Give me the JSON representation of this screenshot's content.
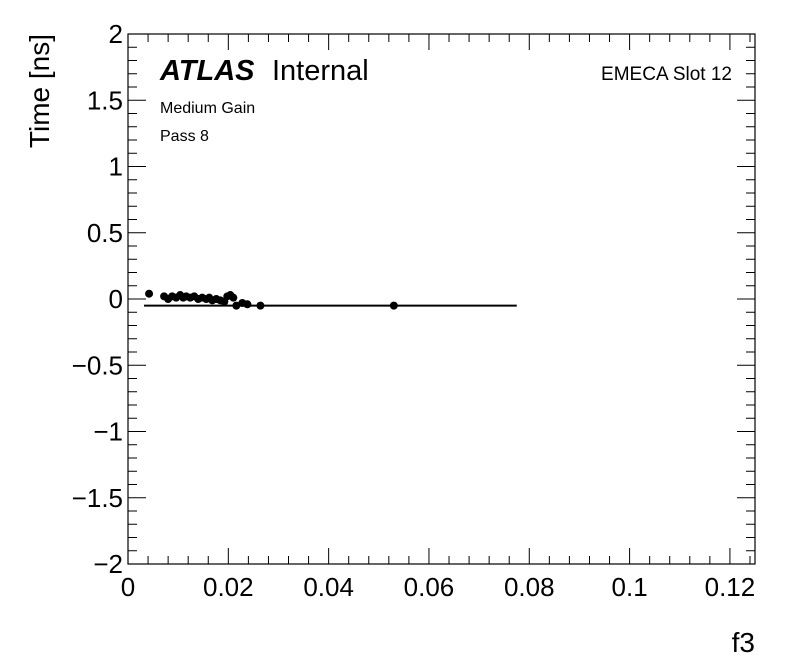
{
  "chart_data": {
    "type": "scatter",
    "title": "",
    "xlabel": "f3",
    "ylabel": "Time [ns]",
    "xlim": [
      0,
      0.125
    ],
    "ylim": [
      -2,
      2
    ],
    "x_ticks": [
      0,
      0.02,
      0.04,
      0.06,
      0.08,
      0.1,
      0.12
    ],
    "x_tick_labels": [
      "0",
      "0.02",
      "0.04",
      "0.06",
      "0.08",
      "0.1",
      "0.12"
    ],
    "y_ticks": [
      -2,
      -1.5,
      -1,
      -0.5,
      0,
      0.5,
      1,
      1.5,
      2
    ],
    "y_tick_labels": [
      "−2",
      "−1.5",
      "−1",
      "−0.5",
      "0",
      "0.5",
      "1",
      "1.5",
      "2"
    ],
    "grid": false,
    "annotations": {
      "experiment": "ATLAS",
      "status": "Internal",
      "gain": "Medium Gain",
      "pass": "Pass 8",
      "slot": "EMECA Slot 12"
    },
    "points": [
      {
        "x": 0.0042,
        "y": 0.04
      },
      {
        "x": 0.0072,
        "y": 0.02
      },
      {
        "x": 0.008,
        "y": 0.0
      },
      {
        "x": 0.0088,
        "y": 0.02
      },
      {
        "x": 0.0096,
        "y": 0.01
      },
      {
        "x": 0.0104,
        "y": 0.03
      },
      {
        "x": 0.011,
        "y": 0.01
      },
      {
        "x": 0.0116,
        "y": 0.02
      },
      {
        "x": 0.0124,
        "y": 0.01
      },
      {
        "x": 0.0132,
        "y": 0.02
      },
      {
        "x": 0.014,
        "y": 0.0
      },
      {
        "x": 0.0148,
        "y": 0.01
      },
      {
        "x": 0.0156,
        "y": 0.0
      },
      {
        "x": 0.0162,
        "y": 0.01
      },
      {
        "x": 0.0168,
        "y": -0.01
      },
      {
        "x": 0.0176,
        "y": 0.0
      },
      {
        "x": 0.0184,
        "y": -0.01
      },
      {
        "x": 0.0192,
        "y": -0.02
      },
      {
        "x": 0.0198,
        "y": 0.02
      },
      {
        "x": 0.0204,
        "y": 0.03
      },
      {
        "x": 0.021,
        "y": 0.01
      },
      {
        "x": 0.0216,
        "y": -0.05
      },
      {
        "x": 0.0228,
        "y": -0.03
      },
      {
        "x": 0.0238,
        "y": -0.04
      },
      {
        "x": 0.0264,
        "y": -0.05
      },
      {
        "x": 0.053,
        "y": -0.05
      }
    ],
    "fit_line": {
      "x": [
        0.0032,
        0.0775
      ],
      "y": [
        -0.05,
        -0.05
      ]
    },
    "marker_color": "#000000",
    "line_color": "#000000"
  }
}
